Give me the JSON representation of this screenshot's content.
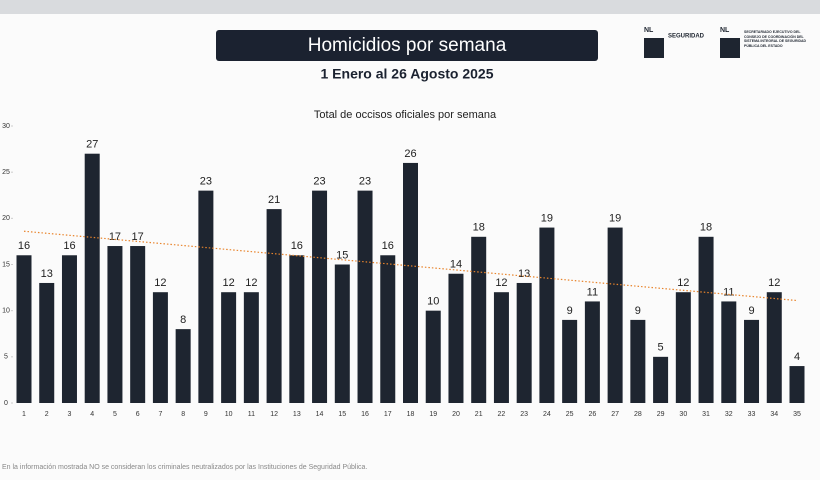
{
  "chart_data": {
    "type": "bar",
    "title": "Homicidios por semana",
    "subtitle": "1 Enero al 26 Agosto 2025",
    "chart_title": "Total de occisos oficiales por semana",
    "footnote": "En la información mostrada NO se consideran los criminales neutralizados por las Instituciones de Seguridad Pública.",
    "logos": [
      "NL",
      "SEGURIDAD",
      "NL",
      "SECRETARIADO EJECUTIVO DEL CONSEJO DE COORDINACIÓN DEL SISTEMA INTEGRAL DE SEGURIDAD PÚBLICA DEL ESTADO"
    ],
    "categories": [
      "1",
      "2",
      "3",
      "4",
      "5",
      "6",
      "7",
      "8",
      "9",
      "10",
      "11",
      "12",
      "13",
      "14",
      "15",
      "16",
      "17",
      "18",
      "19",
      "20",
      "21",
      "22",
      "23",
      "24",
      "25",
      "26",
      "27",
      "28",
      "29",
      "30",
      "31",
      "32",
      "33",
      "34",
      "35"
    ],
    "values": [
      16,
      13,
      16,
      27,
      17,
      17,
      12,
      8,
      23,
      12,
      12,
      21,
      16,
      23,
      15,
      23,
      16,
      26,
      10,
      14,
      18,
      12,
      13,
      19,
      9,
      11,
      19,
      9,
      5,
      12,
      18,
      11,
      9,
      12,
      4
    ],
    "color": "#1e2530",
    "trend": {
      "values": [
        18.6,
        11.1
      ],
      "color": "#e8842c"
    },
    "ylim": [
      0,
      30
    ],
    "yticks": [
      0,
      5,
      10,
      15,
      20,
      25,
      30
    ]
  }
}
